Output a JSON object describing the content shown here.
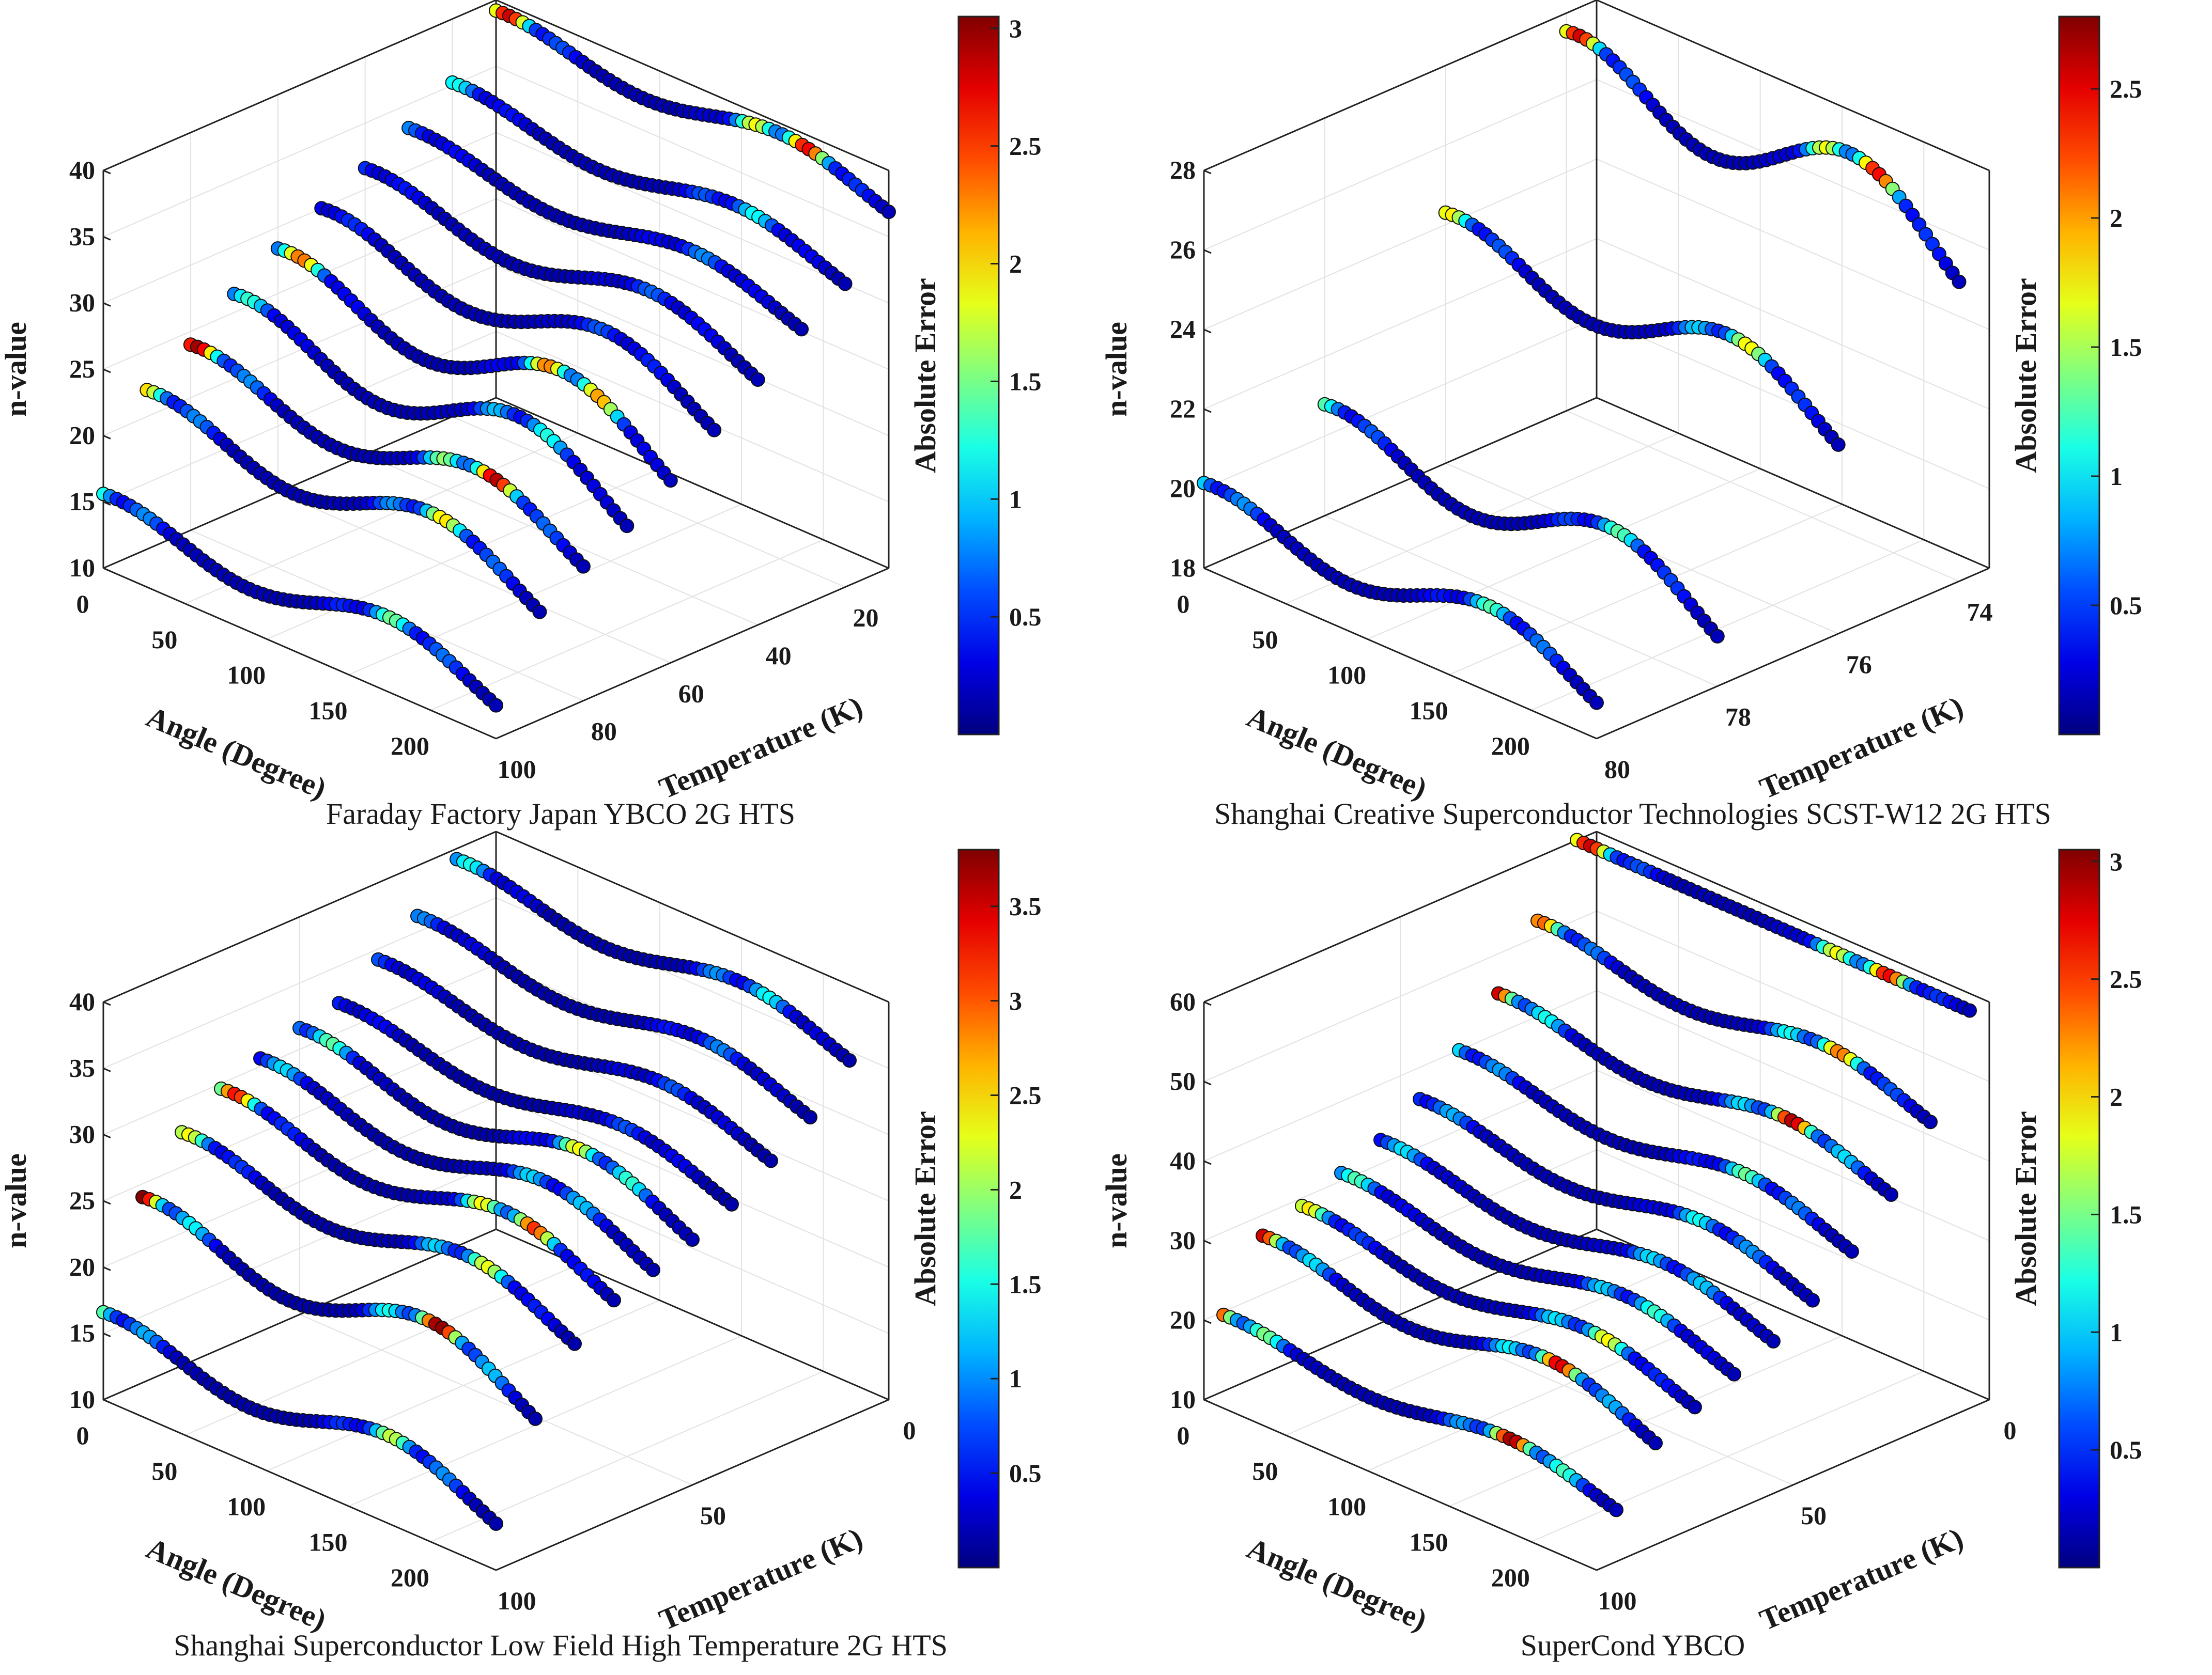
{
  "chart_data": [
    {
      "type": "scatter3d",
      "caption": "Faraday Factory Japan YBCO 2G HTS",
      "xlabel": "Angle (Degree)",
      "ylabel": "Temperature (K)",
      "zlabel": "n-value",
      "colorbar_label": "Absolute Error",
      "angle_ticks": [
        0,
        50,
        100,
        150,
        200
      ],
      "temp_ticks": [
        20,
        40,
        60,
        80,
        100
      ],
      "z_ticks": [
        10,
        15,
        20,
        25,
        30,
        35,
        40
      ],
      "colorbar_ticks": [
        0.5,
        1,
        1.5,
        2,
        2.5,
        3
      ],
      "angle_range": [
        0,
        240
      ],
      "temp_range": [
        100,
        10
      ],
      "z_range": [
        10,
        40
      ],
      "error_range": [
        0,
        3.05
      ],
      "series": [
        {
          "temperature": 10,
          "n_base": 38,
          "amplitude": 1.5,
          "error_peak": 3.0
        },
        {
          "temperature": 20,
          "n_base": 34,
          "amplitude": 1.5,
          "error_peak": 1.2
        },
        {
          "temperature": 30,
          "n_base": 32,
          "amplitude": 1.5,
          "error_peak": 0.8
        },
        {
          "temperature": 40,
          "n_base": 30,
          "amplitude": 2.0,
          "error_peak": 0.7
        },
        {
          "temperature": 50,
          "n_base": 28,
          "amplitude": 2.5,
          "error_peak": 0.7
        },
        {
          "temperature": 60,
          "n_base": 26,
          "amplitude": 3.0,
          "error_peak": 2.9
        },
        {
          "temperature": 70,
          "n_base": 24,
          "amplitude": 3.0,
          "error_peak": 1.4
        },
        {
          "temperature": 80,
          "n_base": 22,
          "amplitude": 2.5,
          "error_peak": 3.0
        },
        {
          "temperature": 90,
          "n_base": 20,
          "amplitude": 2.5,
          "error_peak": 2.0
        },
        {
          "temperature": 100,
          "n_base": 14,
          "amplitude": 2.0,
          "error_peak": 1.5
        }
      ]
    },
    {
      "type": "scatter3d",
      "caption": "Shanghai Creative Superconductor Technologies SCST-W12 2G HTS",
      "xlabel": "Angle (Degree)",
      "ylabel": "Temperature (K)",
      "zlabel": "n-value",
      "colorbar_label": "Absolute Error",
      "angle_ticks": [
        0,
        50,
        100,
        150,
        200
      ],
      "temp_ticks": [
        74,
        76,
        78,
        80
      ],
      "z_ticks": [
        18,
        20,
        22,
        24,
        26,
        28
      ],
      "colorbar_ticks": [
        0.5,
        1,
        1.5,
        2,
        2.5
      ],
      "angle_range": [
        0,
        240
      ],
      "temp_range": [
        80,
        73.5
      ],
      "z_range": [
        18,
        28
      ],
      "error_range": [
        0,
        2.78
      ],
      "series": [
        {
          "temperature": 74,
          "n_base": 26.5,
          "amplitude": 1.3,
          "error_peak": 2.7
        },
        {
          "temperature": 76,
          "n_base": 23.5,
          "amplitude": 1.0,
          "error_peak": 1.8
        },
        {
          "temperature": 78,
          "n_base": 20.0,
          "amplitude": 1.0,
          "error_peak": 1.3
        },
        {
          "temperature": 80,
          "n_base": 19.5,
          "amplitude": 0.8,
          "error_peak": 1.3
        }
      ]
    },
    {
      "type": "scatter3d",
      "caption": "Shanghai Superconductor Low Field High Temperature 2G HTS",
      "xlabel": "Angle (Degree)",
      "ylabel": "Temperature (K)",
      "zlabel": "n-value",
      "colorbar_label": "Absolute Error",
      "angle_ticks": [
        0,
        50,
        100,
        150,
        200
      ],
      "temp_ticks": [
        0,
        50,
        100
      ],
      "z_ticks": [
        10,
        15,
        20,
        25,
        30,
        35,
        40
      ],
      "colorbar_ticks": [
        0.5,
        1,
        1.5,
        2,
        2.5,
        3,
        3.5
      ],
      "angle_range": [
        0,
        240
      ],
      "temp_range": [
        100,
        0
      ],
      "z_range": [
        10,
        40
      ],
      "error_range": [
        0,
        3.8
      ],
      "series": [
        {
          "temperature": 10,
          "n_base": 38,
          "amplitude": 1.5,
          "error_peak": 1.6
        },
        {
          "temperature": 20,
          "n_base": 35,
          "amplitude": 1.5,
          "error_peak": 1.0
        },
        {
          "temperature": 30,
          "n_base": 33,
          "amplitude": 1.5,
          "error_peak": 0.8
        },
        {
          "temperature": 40,
          "n_base": 31,
          "amplitude": 1.5,
          "error_peak": 0.8
        },
        {
          "temperature": 50,
          "n_base": 30,
          "amplitude": 2.0,
          "error_peak": 2.6
        },
        {
          "temperature": 60,
          "n_base": 29,
          "amplitude": 2.0,
          "error_peak": 1.6
        },
        {
          "temperature": 70,
          "n_base": 28,
          "amplitude": 2.0,
          "error_peak": 3.6
        },
        {
          "temperature": 80,
          "n_base": 26,
          "amplitude": 2.0,
          "error_peak": 2.4
        },
        {
          "temperature": 90,
          "n_base": 22,
          "amplitude": 2.5,
          "error_peak": 3.8
        },
        {
          "temperature": 100,
          "n_base": 15,
          "amplitude": 2.0,
          "error_peak": 2.2
        }
      ]
    },
    {
      "type": "scatter3d",
      "caption": "SuperCond YBCO",
      "xlabel": "Angle (Degree)",
      "ylabel": "Temperature (K)",
      "zlabel": "n-value",
      "colorbar_label": "Absolute Error",
      "angle_ticks": [
        0,
        50,
        100,
        150,
        200
      ],
      "temp_ticks": [
        0,
        50,
        100
      ],
      "z_ticks": [
        10,
        20,
        30,
        40,
        50,
        60
      ],
      "colorbar_ticks": [
        0.5,
        1,
        1.5,
        2,
        2.5,
        3
      ],
      "angle_range": [
        0,
        240
      ],
      "temp_range": [
        100,
        0
      ],
      "z_range": [
        10,
        60
      ],
      "error_range": [
        0,
        3.05
      ],
      "series": [
        {
          "temperature": 5,
          "n_base": 62,
          "amplitude": 2.5,
          "error_peak": 3.0
        },
        {
          "temperature": 15,
          "n_base": 50,
          "amplitude": 2.5,
          "error_peak": 2.4
        },
        {
          "temperature": 25,
          "n_base": 43,
          "amplitude": 2.5,
          "error_peak": 2.9
        },
        {
          "temperature": 35,
          "n_base": 38,
          "amplitude": 2.5,
          "error_peak": 1.5
        },
        {
          "temperature": 45,
          "n_base": 34,
          "amplitude": 2.5,
          "error_peak": 1.3
        },
        {
          "temperature": 55,
          "n_base": 31,
          "amplitude": 2.5,
          "error_peak": 1.3
        },
        {
          "temperature": 65,
          "n_base": 29,
          "amplitude": 2.5,
          "error_peak": 1.5
        },
        {
          "temperature": 75,
          "n_base": 27,
          "amplitude": 2.5,
          "error_peak": 2.0
        },
        {
          "temperature": 85,
          "n_base": 25,
          "amplitude": 3.0,
          "error_peak": 2.8
        },
        {
          "temperature": 95,
          "n_base": 18,
          "amplitude": 2.0,
          "error_peak": 3.0
        }
      ]
    }
  ]
}
